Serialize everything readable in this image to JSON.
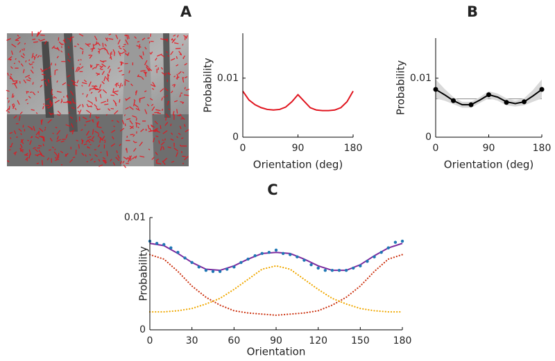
{
  "chart_data": [
    {
      "type": "line",
      "title": "A",
      "xlabel": "Orientation (deg)",
      "ylabel": "Probability",
      "xlim": [
        0,
        180
      ],
      "ylim": [
        0,
        0.0176
      ],
      "xticks": [
        0,
        90,
        180
      ],
      "yticks": [
        0,
        0.01
      ],
      "series": [
        {
          "style": "line",
          "color": "#e0141e",
          "x": [
            0,
            10,
            20,
            30,
            40,
            50,
            60,
            70,
            80,
            90,
            100,
            110,
            120,
            130,
            140,
            150,
            160,
            170,
            180
          ],
          "values": [
            0.0078,
            0.0063,
            0.0055,
            0.005,
            0.0047,
            0.0046,
            0.0047,
            0.0051,
            0.006,
            0.0072,
            0.0061,
            0.005,
            0.0046,
            0.0045,
            0.0045,
            0.0046,
            0.005,
            0.006,
            0.0078
          ]
        }
      ]
    },
    {
      "type": "line",
      "title": "B",
      "xlabel": "Orientation (deg)",
      "ylabel": "Probability",
      "xlim": [
        0,
        180
      ],
      "ylim": [
        0,
        0.0168
      ],
      "xticks": [
        0,
        90,
        180
      ],
      "yticks": [
        0,
        0.01
      ],
      "reference_line": 0.0065,
      "series": [
        {
          "style": "band",
          "color": "#d9d9d9",
          "x": [
            0,
            15,
            30,
            45,
            60,
            75,
            90,
            105,
            120,
            135,
            150,
            165,
            180
          ],
          "upper": [
            0.0098,
            0.0082,
            0.0068,
            0.006,
            0.006,
            0.0068,
            0.0078,
            0.0074,
            0.0066,
            0.0062,
            0.0066,
            0.008,
            0.0098
          ],
          "lower": [
            0.0066,
            0.0062,
            0.0056,
            0.005,
            0.005,
            0.0058,
            0.0066,
            0.0062,
            0.0054,
            0.0052,
            0.0054,
            0.006,
            0.0066
          ]
        },
        {
          "style": "line",
          "color": "#000000",
          "x": [
            0,
            15,
            30,
            45,
            60,
            75,
            90,
            105,
            120,
            135,
            150,
            165,
            180
          ],
          "values": [
            0.0081,
            0.0072,
            0.0062,
            0.0055,
            0.0055,
            0.0063,
            0.0072,
            0.0068,
            0.006,
            0.0057,
            0.006,
            0.007,
            0.0081
          ]
        },
        {
          "style": "dots",
          "color": "#000000",
          "x": [
            0,
            30,
            60,
            90,
            120,
            150,
            180
          ],
          "values": [
            0.0081,
            0.0062,
            0.0055,
            0.0072,
            0.0059,
            0.006,
            0.0081
          ]
        }
      ]
    },
    {
      "type": "line",
      "title": "C",
      "xlabel": "Orientation",
      "ylabel": "Probability",
      "xlim": [
        0,
        180
      ],
      "ylim": [
        0,
        0.01
      ],
      "xticks": [
        0,
        30,
        60,
        90,
        120,
        150,
        180
      ],
      "yticks": [
        0,
        0.01
      ],
      "series": [
        {
          "style": "dotted",
          "color": "#cc3311",
          "x": [
            0,
            10,
            20,
            30,
            40,
            50,
            60,
            70,
            80,
            90,
            100,
            110,
            120,
            130,
            140,
            150,
            160,
            170,
            180
          ],
          "values": [
            0.0067,
            0.0063,
            0.0052,
            0.0039,
            0.0029,
            0.0022,
            0.0017,
            0.0015,
            0.0014,
            0.0013,
            0.0014,
            0.0015,
            0.0017,
            0.0022,
            0.0029,
            0.0039,
            0.0052,
            0.0063,
            0.0067
          ]
        },
        {
          "style": "dotted",
          "color": "#f0a800",
          "x": [
            0,
            10,
            20,
            30,
            40,
            50,
            60,
            70,
            80,
            90,
            100,
            110,
            120,
            130,
            140,
            150,
            160,
            170,
            180
          ],
          "values": [
            0.0016,
            0.0016,
            0.0017,
            0.0019,
            0.0023,
            0.0028,
            0.0036,
            0.0045,
            0.0054,
            0.0057,
            0.0054,
            0.0045,
            0.0036,
            0.0028,
            0.0023,
            0.0019,
            0.0017,
            0.0016,
            0.0016
          ]
        },
        {
          "style": "line",
          "color": "#7b2a9e",
          "x": [
            0,
            10,
            20,
            30,
            40,
            50,
            60,
            70,
            80,
            90,
            100,
            110,
            120,
            130,
            140,
            150,
            160,
            170,
            180
          ],
          "values": [
            0.0077,
            0.0075,
            0.0068,
            0.006,
            0.0054,
            0.0053,
            0.0057,
            0.0063,
            0.0068,
            0.0069,
            0.0068,
            0.0063,
            0.0057,
            0.0053,
            0.0053,
            0.0058,
            0.0066,
            0.0073,
            0.0077
          ]
        },
        {
          "style": "dots",
          "color": "#1f77b4",
          "x": [
            0,
            5,
            10,
            15,
            20,
            25,
            30,
            35,
            40,
            45,
            50,
            55,
            60,
            65,
            70,
            75,
            80,
            85,
            90,
            95,
            100,
            105,
            110,
            115,
            120,
            125,
            130,
            135,
            140,
            145,
            150,
            155,
            160,
            165,
            170,
            175,
            180
          ],
          "values": [
            0.0079,
            0.0077,
            0.0076,
            0.0073,
            0.0069,
            0.0064,
            0.006,
            0.0056,
            0.0053,
            0.0052,
            0.0052,
            0.0054,
            0.0056,
            0.006,
            0.0063,
            0.0066,
            0.0068,
            0.0069,
            0.0071,
            0.0068,
            0.0067,
            0.0065,
            0.0062,
            0.0058,
            0.0055,
            0.0053,
            0.0053,
            0.0053,
            0.0053,
            0.0055,
            0.0057,
            0.0061,
            0.0065,
            0.0069,
            0.0073,
            0.0078,
            0.0079
          ]
        }
      ]
    }
  ]
}
